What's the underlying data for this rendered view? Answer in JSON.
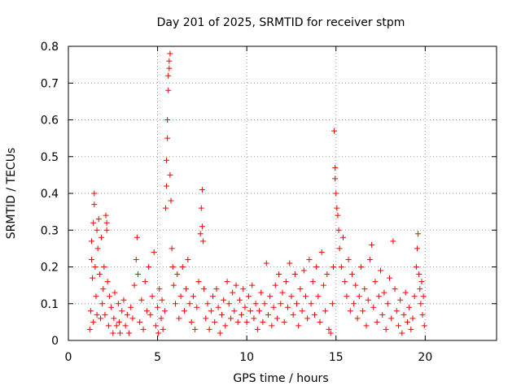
{
  "chart_data": {
    "type": "scatter",
    "title": "Day 201 of 2025, SRMTID for receiver stpm",
    "xlabel": "GPS time / hours",
    "ylabel": "SRMTID / TECUs",
    "xlim": [
      0,
      24
    ],
    "ylim": [
      0,
      0.8
    ],
    "xticks": [
      "0",
      "5",
      "10",
      "15",
      "20"
    ],
    "yticks": [
      "0",
      "0.1",
      "0.2",
      "0.3",
      "0.4",
      "0.5",
      "0.6",
      "0.7",
      "0.8"
    ],
    "grid": true,
    "marker": "plus",
    "series": [
      {
        "name": "SRMTID",
        "color": "#ff0000",
        "points": [
          [
            1.2,
            0.03
          ],
          [
            1.25,
            0.08
          ],
          [
            1.3,
            0.27
          ],
          [
            1.3,
            0.22
          ],
          [
            1.35,
            0.17
          ],
          [
            1.4,
            0.05
          ],
          [
            1.4,
            0.32
          ],
          [
            1.45,
            0.4
          ],
          [
            1.45,
            0.37
          ],
          [
            1.5,
            0.2
          ],
          [
            1.55,
            0.12
          ],
          [
            1.6,
            0.07
          ],
          [
            1.6,
            0.3
          ],
          [
            1.65,
            0.25
          ],
          [
            1.7,
            0.33
          ],
          [
            1.75,
            0.18
          ],
          [
            1.8,
            0.06
          ],
          [
            1.85,
            0.28
          ],
          [
            1.9,
            0.1
          ],
          [
            1.95,
            0.14
          ],
          [
            2.0,
            0.2
          ],
          [
            2.05,
            0.07
          ],
          [
            2.1,
            0.34
          ],
          [
            2.15,
            0.32
          ],
          [
            2.15,
            0.3
          ],
          [
            2.2,
            0.16
          ],
          [
            2.25,
            0.04
          ],
          [
            2.3,
            0.12
          ],
          [
            2.4,
            0.09
          ],
          [
            2.5,
            0.02
          ],
          [
            2.55,
            0.06
          ],
          [
            2.6,
            0.13
          ],
          [
            2.7,
            0.04
          ],
          [
            2.8,
            0.1
          ],
          [
            2.85,
            0.05
          ],
          [
            2.9,
            0.02
          ],
          [
            3.0,
            0.08
          ],
          [
            3.1,
            0.11
          ],
          [
            3.2,
            0.04
          ],
          [
            3.3,
            0.07
          ],
          [
            3.4,
            0.02
          ],
          [
            3.5,
            0.09
          ],
          [
            3.6,
            0.06
          ],
          [
            3.7,
            0.15
          ],
          [
            3.8,
            0.22
          ],
          [
            3.85,
            0.28
          ],
          [
            3.9,
            0.18
          ],
          [
            4.0,
            0.05
          ],
          [
            4.1,
            0.11
          ],
          [
            4.2,
            0.03
          ],
          [
            4.3,
            0.16
          ],
          [
            4.4,
            0.08
          ],
          [
            4.5,
            0.2
          ],
          [
            4.6,
            0.07
          ],
          [
            4.7,
            0.12
          ],
          [
            4.8,
            0.24
          ],
          [
            4.9,
            0.04
          ],
          [
            5.0,
            0.09
          ],
          [
            5.05,
            0.02
          ],
          [
            5.1,
            0.14
          ],
          [
            5.2,
            0.06
          ],
          [
            5.25,
            0.11
          ],
          [
            5.3,
            0.03
          ],
          [
            5.4,
            0.08
          ],
          [
            5.45,
            0.36
          ],
          [
            5.5,
            0.42
          ],
          [
            5.5,
            0.49
          ],
          [
            5.55,
            0.55
          ],
          [
            5.55,
            0.6
          ],
          [
            5.6,
            0.68
          ],
          [
            5.6,
            0.72
          ],
          [
            5.65,
            0.74
          ],
          [
            5.65,
            0.76
          ],
          [
            5.7,
            0.78
          ],
          [
            5.7,
            0.45
          ],
          [
            5.75,
            0.38
          ],
          [
            5.8,
            0.25
          ],
          [
            5.85,
            0.2
          ],
          [
            5.9,
            0.15
          ],
          [
            6.0,
            0.1
          ],
          [
            6.1,
            0.18
          ],
          [
            6.2,
            0.06
          ],
          [
            6.3,
            0.12
          ],
          [
            6.4,
            0.2
          ],
          [
            6.5,
            0.08
          ],
          [
            6.6,
            0.14
          ],
          [
            6.7,
            0.22
          ],
          [
            6.8,
            0.1
          ],
          [
            6.9,
            0.05
          ],
          [
            7.0,
            0.12
          ],
          [
            7.1,
            0.03
          ],
          [
            7.2,
            0.09
          ],
          [
            7.3,
            0.16
          ],
          [
            7.4,
            0.29
          ],
          [
            7.45,
            0.36
          ],
          [
            7.5,
            0.41
          ],
          [
            7.5,
            0.31
          ],
          [
            7.55,
            0.27
          ],
          [
            7.6,
            0.14
          ],
          [
            7.7,
            0.06
          ],
          [
            7.8,
            0.1
          ],
          [
            7.9,
            0.03
          ],
          [
            8.0,
            0.08
          ],
          [
            8.1,
            0.12
          ],
          [
            8.2,
            0.05
          ],
          [
            8.3,
            0.14
          ],
          [
            8.4,
            0.09
          ],
          [
            8.5,
            0.02
          ],
          [
            8.6,
            0.07
          ],
          [
            8.7,
            0.11
          ],
          [
            8.8,
            0.04
          ],
          [
            8.9,
            0.16
          ],
          [
            9.0,
            0.1
          ],
          [
            9.1,
            0.06
          ],
          [
            9.2,
            0.13
          ],
          [
            9.3,
            0.08
          ],
          [
            9.4,
            0.15
          ],
          [
            9.5,
            0.05
          ],
          [
            9.6,
            0.11
          ],
          [
            9.7,
            0.07
          ],
          [
            9.8,
            0.14
          ],
          [
            9.9,
            0.09
          ],
          [
            10.0,
            0.05
          ],
          [
            10.1,
            0.12
          ],
          [
            10.2,
            0.08
          ],
          [
            10.3,
            0.15
          ],
          [
            10.4,
            0.06
          ],
          [
            10.5,
            0.1
          ],
          [
            10.6,
            0.03
          ],
          [
            10.7,
            0.08
          ],
          [
            10.8,
            0.13
          ],
          [
            10.9,
            0.05
          ],
          [
            11.0,
            0.1
          ],
          [
            11.1,
            0.21
          ],
          [
            11.2,
            0.07
          ],
          [
            11.3,
            0.12
          ],
          [
            11.4,
            0.04
          ],
          [
            11.5,
            0.09
          ],
          [
            11.6,
            0.15
          ],
          [
            11.7,
            0.06
          ],
          [
            11.8,
            0.18
          ],
          [
            11.9,
            0.1
          ],
          [
            12.0,
            0.13
          ],
          [
            12.1,
            0.05
          ],
          [
            12.2,
            0.16
          ],
          [
            12.3,
            0.09
          ],
          [
            12.4,
            0.21
          ],
          [
            12.5,
            0.12
          ],
          [
            12.6,
            0.07
          ],
          [
            12.7,
            0.18
          ],
          [
            12.8,
            0.1
          ],
          [
            12.9,
            0.04
          ],
          [
            13.0,
            0.14
          ],
          [
            13.1,
            0.08
          ],
          [
            13.2,
            0.19
          ],
          [
            13.3,
            0.12
          ],
          [
            13.4,
            0.06
          ],
          [
            13.5,
            0.22
          ],
          [
            13.6,
            0.1
          ],
          [
            13.7,
            0.16
          ],
          [
            13.8,
            0.07
          ],
          [
            13.9,
            0.2
          ],
          [
            14.0,
            0.12
          ],
          [
            14.1,
            0.05
          ],
          [
            14.2,
            0.24
          ],
          [
            14.3,
            0.15
          ],
          [
            14.4,
            0.08
          ],
          [
            14.5,
            0.18
          ],
          [
            14.6,
            0.03
          ],
          [
            14.7,
            0.02
          ],
          [
            14.8,
            0.1
          ],
          [
            14.85,
            0.2
          ],
          [
            14.9,
            0.57
          ],
          [
            14.95,
            0.47
          ],
          [
            14.95,
            0.44
          ],
          [
            15.0,
            0.4
          ],
          [
            15.05,
            0.36
          ],
          [
            15.1,
            0.34
          ],
          [
            15.15,
            0.3
          ],
          [
            15.2,
            0.25
          ],
          [
            15.3,
            0.2
          ],
          [
            15.4,
            0.28
          ],
          [
            15.5,
            0.16
          ],
          [
            15.6,
            0.12
          ],
          [
            15.7,
            0.22
          ],
          [
            15.8,
            0.08
          ],
          [
            15.9,
            0.18
          ],
          [
            16.0,
            0.1
          ],
          [
            16.1,
            0.15
          ],
          [
            16.2,
            0.06
          ],
          [
            16.3,
            0.12
          ],
          [
            16.4,
            0.2
          ],
          [
            16.5,
            0.08
          ],
          [
            16.6,
            0.14
          ],
          [
            16.7,
            0.04
          ],
          [
            16.8,
            0.11
          ],
          [
            16.9,
            0.22
          ],
          [
            17.0,
            0.26
          ],
          [
            17.1,
            0.09
          ],
          [
            17.2,
            0.16
          ],
          [
            17.3,
            0.05
          ],
          [
            17.4,
            0.12
          ],
          [
            17.5,
            0.19
          ],
          [
            17.6,
            0.07
          ],
          [
            17.7,
            0.13
          ],
          [
            17.8,
            0.03
          ],
          [
            17.9,
            0.1
          ],
          [
            18.0,
            0.17
          ],
          [
            18.1,
            0.06
          ],
          [
            18.2,
            0.27
          ],
          [
            18.3,
            0.14
          ],
          [
            18.4,
            0.08
          ],
          [
            18.5,
            0.04
          ],
          [
            18.6,
            0.11
          ],
          [
            18.7,
            0.02
          ],
          [
            18.8,
            0.07
          ],
          [
            18.9,
            0.13
          ],
          [
            19.0,
            0.05
          ],
          [
            19.1,
            0.09
          ],
          [
            19.2,
            0.03
          ],
          [
            19.3,
            0.06
          ],
          [
            19.4,
            0.12
          ],
          [
            19.5,
            0.2
          ],
          [
            19.55,
            0.25
          ],
          [
            19.6,
            0.29
          ],
          [
            19.65,
            0.18
          ],
          [
            19.7,
            0.14
          ],
          [
            19.75,
            0.1
          ],
          [
            19.8,
            0.16
          ],
          [
            19.85,
            0.07
          ],
          [
            19.9,
            0.12
          ],
          [
            19.95,
            0.04
          ]
        ]
      }
    ]
  }
}
